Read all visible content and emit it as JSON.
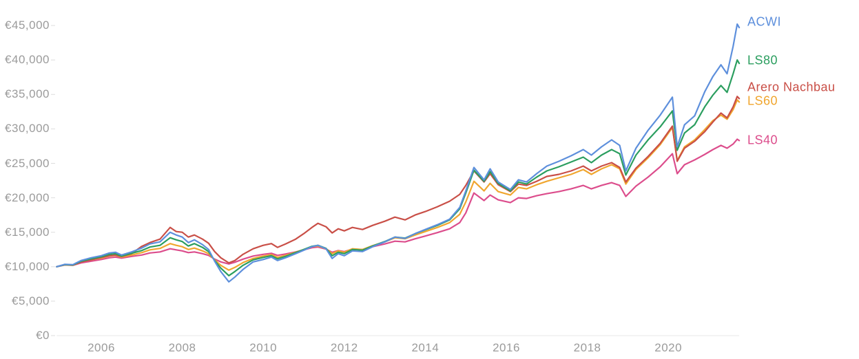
{
  "chart_data": {
    "type": "line",
    "title": "",
    "currency": "EUR",
    "description": "Growth of a €10,000 investment, ~2005 to late 2021, five portfolios",
    "legend_position": "line-end-labels-right",
    "grid": false,
    "background_color": "#ffffff",
    "axis_line_color": "#e7e7e7",
    "tick_color": "#dddddd",
    "text_color": "#9b9b9b",
    "x_axis": {
      "tick_values": [
        2006,
        2008,
        2010,
        2012,
        2014,
        2016,
        2018,
        2020
      ],
      "tick_labels": [
        "2006",
        "2008",
        "2010",
        "2012",
        "2014",
        "2016",
        "2018",
        "2020"
      ],
      "range": [
        2004.9,
        2021.75
      ]
    },
    "y_axis": {
      "tick_values": [
        45000,
        40000,
        35000,
        30000,
        25000,
        20000,
        15000,
        10000,
        5000,
        0
      ],
      "tick_labels": [
        "€45,000",
        "€40,000",
        "€35,000",
        "€30,000",
        "€25,000",
        "€20,000",
        "€15,000",
        "€10,000",
        "€5,000",
        "€0"
      ],
      "range": [
        0,
        47000
      ]
    },
    "x": [
      2004.9,
      2005.1,
      2005.3,
      2005.5,
      2005.75,
      2006.0,
      2006.2,
      2006.35,
      2006.5,
      2006.75,
      2007.0,
      2007.2,
      2007.45,
      2007.7,
      2007.85,
      2008.0,
      2008.15,
      2008.3,
      2008.5,
      2008.65,
      2008.8,
      2008.95,
      2009.15,
      2009.3,
      2009.5,
      2009.75,
      2010.0,
      2010.2,
      2010.35,
      2010.55,
      2010.8,
      2011.0,
      2011.2,
      2011.35,
      2011.55,
      2011.7,
      2011.85,
      2012.0,
      2012.2,
      2012.45,
      2012.7,
      2013.0,
      2013.25,
      2013.5,
      2013.75,
      2014.0,
      2014.3,
      2014.6,
      2014.85,
      2015.0,
      2015.2,
      2015.45,
      2015.6,
      2015.8,
      2016.1,
      2016.3,
      2016.5,
      2016.75,
      2017.0,
      2017.3,
      2017.6,
      2017.9,
      2018.1,
      2018.35,
      2018.6,
      2018.8,
      2018.95,
      2019.2,
      2019.5,
      2019.8,
      2020.1,
      2020.22,
      2020.4,
      2020.65,
      2020.9,
      2021.1,
      2021.3,
      2021.45,
      2021.6,
      2021.7,
      2021.75
    ],
    "series": [
      {
        "name": "LS40",
        "color": "#dc4d8c",
        "label_dy": 0,
        "values": [
          10000,
          10250,
          10200,
          10550,
          10800,
          11050,
          11300,
          11400,
          11250,
          11500,
          11700,
          12000,
          12150,
          12600,
          12450,
          12300,
          12050,
          12150,
          11900,
          11650,
          11100,
          10700,
          10400,
          10650,
          11100,
          11550,
          11800,
          11950,
          11650,
          11850,
          12150,
          12450,
          12750,
          12850,
          12550,
          12100,
          12350,
          12200,
          12550,
          12500,
          12900,
          13300,
          13700,
          13600,
          14050,
          14450,
          14950,
          15500,
          16400,
          17800,
          20700,
          19600,
          20400,
          19700,
          19300,
          20000,
          19900,
          20300,
          20600,
          20900,
          21300,
          21800,
          21300,
          21800,
          22200,
          21800,
          20200,
          21700,
          23000,
          24500,
          26400,
          23500,
          24800,
          25500,
          26300,
          27000,
          27600,
          27200,
          27800,
          28500,
          28300
        ]
      },
      {
        "name": "LS60",
        "color": "#f0a62f",
        "label_dy": -1,
        "values": [
          10000,
          10280,
          10220,
          10700,
          11000,
          11250,
          11550,
          11650,
          11400,
          11700,
          12050,
          12450,
          12650,
          13350,
          13100,
          12900,
          12500,
          12700,
          12300,
          11900,
          11000,
          10200,
          9500,
          9900,
          10600,
          11200,
          11550,
          11750,
          11350,
          11650,
          12100,
          12500,
          12900,
          13000,
          12600,
          11900,
          12300,
          12100,
          12600,
          12500,
          13050,
          13600,
          14200,
          14050,
          14600,
          15100,
          15700,
          16400,
          17600,
          19400,
          22400,
          21000,
          22100,
          20900,
          20400,
          21500,
          21300,
          21900,
          22400,
          22900,
          23400,
          24100,
          23400,
          24200,
          24800,
          24200,
          22000,
          24100,
          25800,
          27700,
          30200,
          25400,
          27400,
          28400,
          29900,
          31200,
          32000,
          31400,
          32800,
          34200,
          33900
        ]
      },
      {
        "name": "Arero Nachbau",
        "color": "#c94f47",
        "label_dy": -16,
        "values": [
          10000,
          10300,
          10250,
          10700,
          11000,
          11350,
          11600,
          11700,
          11500,
          11900,
          12950,
          13500,
          14000,
          15700,
          15100,
          15000,
          14300,
          14600,
          14000,
          13400,
          12200,
          11300,
          10550,
          10900,
          11800,
          12600,
          13100,
          13350,
          12800,
          13300,
          14000,
          14800,
          15700,
          16300,
          15800,
          14900,
          15500,
          15200,
          15700,
          15400,
          16000,
          16600,
          17200,
          16800,
          17500,
          18000,
          18700,
          19500,
          20500,
          21800,
          23900,
          22300,
          23500,
          21900,
          20900,
          22000,
          21800,
          22400,
          23100,
          23400,
          23900,
          24600,
          23900,
          24600,
          25100,
          24400,
          22300,
          24300,
          26000,
          27900,
          30400,
          25300,
          27200,
          28200,
          29600,
          31000,
          32300,
          31600,
          33200,
          34700,
          34400
        ]
      },
      {
        "name": "LS80",
        "color": "#2b9e5f",
        "label_dy": -4,
        "values": [
          10000,
          10300,
          10250,
          10800,
          11150,
          11450,
          11800,
          11900,
          11550,
          11950,
          12350,
          12850,
          13100,
          14200,
          13900,
          13650,
          13000,
          13350,
          12800,
          12200,
          10900,
          9800,
          8700,
          9300,
          10200,
          11000,
          11350,
          11600,
          11150,
          11500,
          12050,
          12500,
          12950,
          13100,
          12650,
          11600,
          12100,
          11900,
          12500,
          12400,
          13000,
          13650,
          14300,
          14150,
          14800,
          15350,
          16000,
          16800,
          18400,
          20700,
          24000,
          22400,
          23800,
          22100,
          21000,
          22300,
          22000,
          23000,
          23900,
          24500,
          25200,
          25900,
          25100,
          26200,
          27000,
          26400,
          23300,
          26200,
          28400,
          30300,
          32600,
          26900,
          29400,
          30600,
          33200,
          34900,
          36300,
          35300,
          38000,
          40000,
          39500
        ]
      },
      {
        "name": "ACWI",
        "color": "#5d8fdc",
        "label_dy": -8,
        "values": [
          10000,
          10350,
          10300,
          10900,
          11300,
          11600,
          12000,
          12100,
          11700,
          12150,
          12700,
          13300,
          13600,
          15000,
          14600,
          14300,
          13500,
          13900,
          13200,
          12500,
          10800,
          9300,
          7800,
          8500,
          9600,
          10700,
          11050,
          11400,
          10900,
          11300,
          11900,
          12400,
          12900,
          13100,
          12600,
          11200,
          11900,
          11600,
          12300,
          12200,
          12900,
          13600,
          14300,
          14100,
          14800,
          15400,
          16100,
          16900,
          18600,
          21000,
          24400,
          22600,
          24200,
          22300,
          21200,
          22600,
          22300,
          23500,
          24600,
          25300,
          26100,
          27000,
          26200,
          27400,
          28400,
          27600,
          23900,
          27200,
          29800,
          32000,
          34600,
          27400,
          30600,
          31900,
          35400,
          37600,
          39300,
          38000,
          42000,
          45200,
          44700
        ]
      }
    ]
  }
}
